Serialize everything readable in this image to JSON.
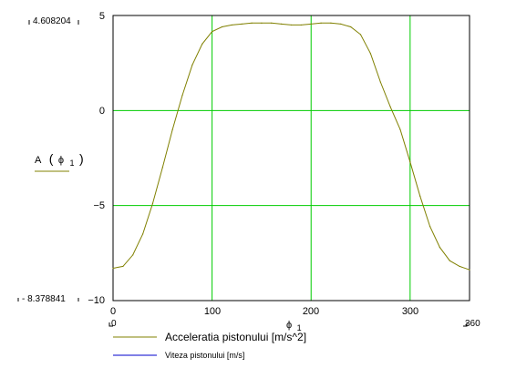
{
  "chart_data": {
    "type": "line",
    "x": [
      0,
      10,
      20,
      30,
      40,
      50,
      60,
      70,
      80,
      90,
      100,
      110,
      120,
      130,
      140,
      150,
      160,
      170,
      180,
      190,
      200,
      210,
      220,
      230,
      240,
      250,
      260,
      270,
      280,
      290,
      300,
      310,
      320,
      330,
      340,
      350,
      360
    ],
    "series": [
      {
        "name": "Acceleratia pistonului [m/s^2]",
        "values": [
          -8.3,
          -8.2,
          -7.6,
          -6.5,
          -4.9,
          -3.0,
          -1.0,
          0.8,
          2.4,
          3.5,
          4.15,
          4.4,
          4.5,
          4.55,
          4.6,
          4.6,
          4.6,
          4.55,
          4.5,
          4.5,
          4.55,
          4.6,
          4.6,
          4.55,
          4.4,
          4.0,
          3.0,
          1.5,
          0.2,
          -1.0,
          -2.7,
          -4.5,
          -6.1,
          -7.2,
          -7.9,
          -8.2,
          -8.38
        ]
      }
    ],
    "y_tick_labels": [
      "5",
      "0",
      "−5",
      "−10"
    ],
    "x_tick_labels": [
      "0",
      "100",
      "200",
      "300"
    ],
    "ylim": [
      -10,
      5
    ],
    "xlim": [
      0,
      360
    ],
    "y_limit_labels": {
      "top": "4.608204",
      "bottom": "- 8.378841"
    },
    "x_limit_labels": {
      "left": "0",
      "right": "360"
    },
    "ylabel": {
      "main": "A",
      "paren_open": "(",
      "sym": "ϕ",
      "sub": "1",
      "paren_close": ")"
    },
    "xlabel": {
      "sym": "ϕ",
      "sub": "1"
    },
    "grid": true,
    "legend_position": "bottom-left"
  },
  "legend": [
    {
      "label": "Acceleratia pistonului [m/s^2]",
      "color": "#808000"
    },
    {
      "label": "Viteza pistonului [m/s]",
      "color": "#0000cc"
    }
  ],
  "colors": {
    "grid": "#00cc00",
    "accel_line": "#808000",
    "speed_line": "#0000cc"
  }
}
